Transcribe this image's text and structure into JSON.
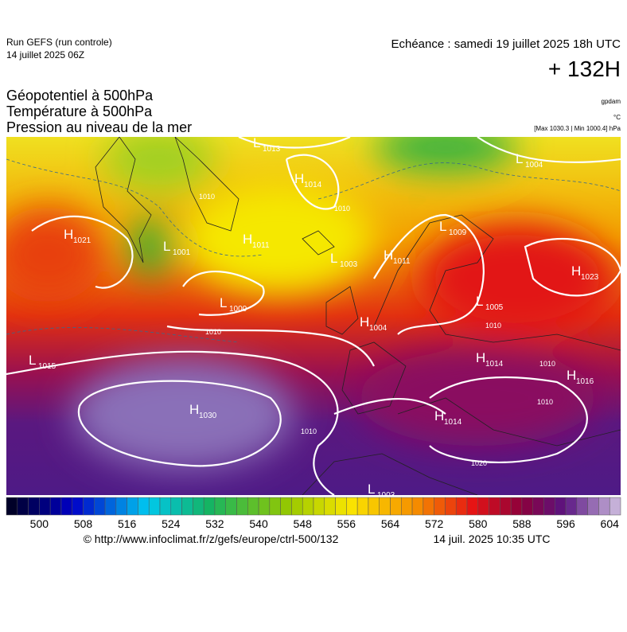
{
  "header": {
    "run": "Run GEFS (run controle)",
    "run_date": "14 juillet 2025 06Z",
    "valid_time": "Echéance : samedi 19 juillet 2025 18h UTC",
    "lead": "+ 132H",
    "fields": [
      "Géopotentiel à 500hPa",
      "Température à 500hPa",
      "Pression au niveau de la mer"
    ],
    "units": [
      "gpdam",
      "°C",
      "[Max 1030.3 | Min 1000.4] hPa"
    ]
  },
  "pressure_centers": [
    {
      "type": "L",
      "value": 1013
    },
    {
      "type": "L",
      "value": 1004
    },
    {
      "type": "H",
      "value": 1014
    },
    {
      "type": "H",
      "value": 1021
    },
    {
      "type": "L",
      "value": 1001
    },
    {
      "type": "H",
      "value": 1011
    },
    {
      "type": "L",
      "value": 1003
    },
    {
      "type": "H",
      "value": 1011
    },
    {
      "type": "L",
      "value": 1009
    },
    {
      "type": "H",
      "value": 1023
    },
    {
      "type": "L",
      "value": 1000
    },
    {
      "type": "L",
      "value": 1005
    },
    {
      "type": "H",
      "value": 1004
    },
    {
      "type": "L",
      "value": 1015
    },
    {
      "type": "H",
      "value": 1014
    },
    {
      "type": "H",
      "value": 1016
    },
    {
      "type": "H",
      "value": 1030
    },
    {
      "type": "H",
      "value": 1014
    },
    {
      "type": "L",
      "value": 1003
    }
  ],
  "isobar_labels": [
    1010,
    1010,
    1010,
    1010,
    1010,
    1010,
    1020,
    1010
  ],
  "colorbar": {
    "range": [
      494,
      606
    ],
    "step": 2,
    "ticks": [
      500,
      508,
      516,
      524,
      532,
      540,
      548,
      556,
      564,
      572,
      580,
      588,
      596,
      604
    ]
  },
  "footer": {
    "source": "© http://www.infoclimat.fr/z/gefs/europe/ctrl-500/132",
    "generated": "14 juil. 2025 10:35 UTC"
  }
}
